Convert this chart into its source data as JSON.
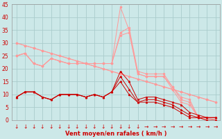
{
  "background_color": "#cce8e8",
  "grid_color": "#aacccc",
  "xlabel": "Vent moyen/en rafales ( km/h )",
  "xlabel_color": "#cc0000",
  "xlabel_fontsize": 6,
  "tick_color": "#cc0000",
  "tick_fontsize": 5.5,
  "xlim": [
    -0.5,
    23.5
  ],
  "ylim": [
    0,
    45
  ],
  "yticks": [
    0,
    5,
    10,
    15,
    20,
    25,
    30,
    35,
    40,
    45
  ],
  "xticks": [
    0,
    1,
    2,
    3,
    4,
    5,
    6,
    7,
    8,
    9,
    10,
    11,
    12,
    13,
    14,
    15,
    16,
    17,
    18,
    19,
    20,
    21,
    22,
    23
  ],
  "lines_dark_red": [
    [
      9,
      11,
      11,
      9,
      8,
      10,
      10,
      10,
      9,
      10,
      9,
      11,
      19,
      15,
      8,
      9,
      9,
      8,
      7,
      6,
      3,
      2,
      1,
      1
    ],
    [
      9,
      11,
      11,
      9,
      8,
      10,
      10,
      10,
      9,
      10,
      9,
      11,
      17,
      12,
      7,
      8,
      8,
      7,
      6,
      4,
      2,
      1,
      1,
      1
    ],
    [
      9,
      11,
      11,
      9,
      8,
      10,
      10,
      10,
      9,
      10,
      9,
      11,
      15,
      10,
      7,
      7,
      7,
      6,
      5,
      3,
      1,
      1,
      0,
      0
    ]
  ],
  "lines_light_diag": [
    [
      30,
      29,
      28,
      27,
      26,
      25,
      24,
      23,
      22,
      21,
      20,
      19,
      18,
      17,
      16,
      15,
      14,
      13,
      12,
      11,
      10,
      9,
      8,
      7
    ],
    [
      30,
      29,
      28,
      27,
      26,
      25,
      24,
      23,
      22,
      21,
      20,
      19,
      18,
      17,
      16,
      15,
      14,
      13,
      12,
      11,
      10,
      9,
      8,
      7
    ]
  ],
  "lines_light_spike": [
    [
      25,
      26,
      22,
      21,
      24,
      23,
      22,
      22,
      22,
      22,
      22,
      22,
      44,
      35,
      18,
      17,
      17,
      17,
      13,
      8,
      7,
      1,
      1,
      0
    ],
    [
      25,
      26,
      22,
      21,
      24,
      23,
      22,
      22,
      22,
      22,
      22,
      22,
      34,
      36,
      19,
      18,
      18,
      18,
      13,
      9,
      8,
      1,
      1,
      1
    ],
    [
      25,
      26,
      22,
      21,
      24,
      23,
      22,
      22,
      22,
      22,
      22,
      22,
      33,
      34,
      18,
      17,
      17,
      17,
      12,
      7,
      6,
      1,
      0,
      0
    ]
  ],
  "dark_color": "#cc0000",
  "light_color": "#ff9999",
  "marker_dark": "^",
  "marker_light": "o",
  "marker_size": 1.5,
  "arrow_labels": [
    "↓",
    "↓",
    "↓",
    "↓",
    "↓",
    "↓",
    "↓",
    "↓",
    "↓",
    "↓",
    "↓",
    "↓",
    "↓",
    "↓",
    "↓",
    "→",
    "→",
    "→",
    "→",
    "→",
    "→",
    "→",
    "→",
    "→"
  ]
}
